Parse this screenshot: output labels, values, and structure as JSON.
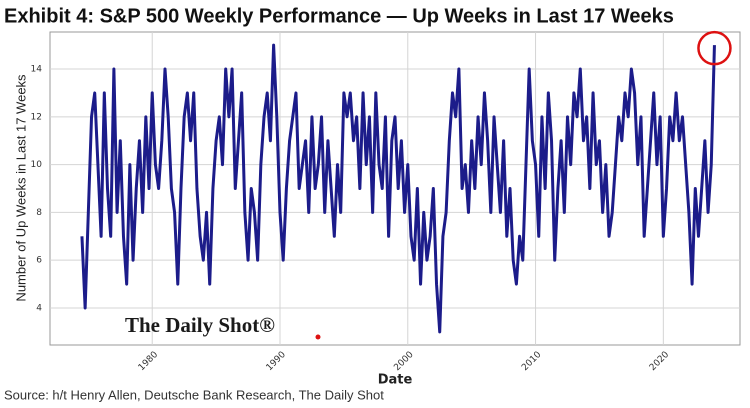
{
  "chart_data": {
    "type": "line",
    "title": "Exhibit 4: S&P 500 Weekly Performance — Up Weeks in Last 17 Weeks",
    "x_label": "Date",
    "y_label": "Number of Up Weeks in Last 17 Weeks",
    "source": "Source: h/t Henry Allen, Deutsche Bank Research, The Daily Shot",
    "watermark": "The Daily Shot®",
    "color": "#1c1c8a",
    "grid": true,
    "xlim": [
      1972,
      2026
    ],
    "xticks": [
      1980,
      1990,
      2000,
      2010,
      2020
    ],
    "ylim": [
      2.45,
      15.55
    ],
    "yticks": [
      4,
      6,
      8,
      10,
      12,
      14
    ],
    "x": [
      1974.5,
      1974.75,
      1975,
      1975.25,
      1975.5,
      1975.75,
      1976,
      1976.25,
      1976.5,
      1976.75,
      1977,
      1977.25,
      1977.5,
      1977.75,
      1978,
      1978.25,
      1978.5,
      1978.75,
      1979,
      1979.25,
      1979.5,
      1979.75,
      1980,
      1980.25,
      1980.5,
      1980.75,
      1981,
      1981.25,
      1981.5,
      1981.75,
      1982,
      1982.25,
      1982.5,
      1982.75,
      1983,
      1983.25,
      1983.5,
      1983.75,
      1984,
      1984.25,
      1984.5,
      1984.75,
      1985,
      1985.25,
      1985.5,
      1985.75,
      1986,
      1986.25,
      1986.5,
      1986.75,
      1987,
      1987.25,
      1987.5,
      1987.75,
      1988,
      1988.25,
      1988.5,
      1988.75,
      1989,
      1989.25,
      1989.5,
      1989.75,
      1990,
      1990.25,
      1990.5,
      1990.75,
      1991,
      1991.25,
      1991.5,
      1991.75,
      1992,
      1992.25,
      1992.5,
      1992.75,
      1993,
      1993.25,
      1993.5,
      1993.75,
      1994,
      1994.25,
      1994.5,
      1994.75,
      1995,
      1995.25,
      1995.5,
      1995.75,
      1996,
      1996.25,
      1996.5,
      1996.75,
      1997,
      1997.25,
      1997.5,
      1997.75,
      1998,
      1998.25,
      1998.5,
      1998.75,
      1999,
      1999.25,
      1999.5,
      1999.75,
      2000,
      2000.25,
      2000.5,
      2000.75,
      2001,
      2001.25,
      2001.5,
      2001.75,
      2002,
      2002.25,
      2002.5,
      2002.75,
      2003,
      2003.25,
      2003.5,
      2003.75,
      2004,
      2004.25,
      2004.5,
      2004.75,
      2005,
      2005.25,
      2005.5,
      2005.75,
      2006,
      2006.25,
      2006.5,
      2006.75,
      2007,
      2007.25,
      2007.5,
      2007.75,
      2008,
      2008.25,
      2008.5,
      2008.75,
      2009,
      2009.25,
      2009.5,
      2009.75,
      2010,
      2010.25,
      2010.5,
      2010.75,
      2011,
      2011.25,
      2011.5,
      2011.75,
      2012,
      2012.25,
      2012.5,
      2012.75,
      2013,
      2013.25,
      2013.5,
      2013.75,
      2014,
      2014.25,
      2014.5,
      2014.75,
      2015,
      2015.25,
      2015.5,
      2015.75,
      2016,
      2016.25,
      2016.5,
      2016.75,
      2017,
      2017.25,
      2017.5,
      2017.75,
      2018,
      2018.25,
      2018.5,
      2018.75,
      2019,
      2019.25,
      2019.5,
      2019.75,
      2020,
      2020.25,
      2020.5,
      2020.75,
      2021,
      2021.25,
      2021.5,
      2021.75,
      2022,
      2022.25,
      2022.5,
      2022.75,
      2023,
      2023.25,
      2023.5,
      2023.75,
      2024
    ],
    "values": [
      7,
      4,
      8,
      12,
      13,
      10,
      7,
      13,
      9,
      7,
      14,
      8,
      11,
      7,
      5,
      10,
      6,
      9,
      11,
      8,
      12,
      9,
      13,
      10,
      9,
      11,
      14,
      12,
      9,
      8,
      5,
      9,
      12,
      13,
      11,
      13,
      9,
      7,
      6,
      8,
      5,
      9,
      11,
      12,
      10,
      14,
      12,
      14,
      9,
      11,
      13,
      8,
      6,
      9,
      8,
      6,
      10,
      12,
      13,
      11,
      15,
      12,
      8,
      6,
      9,
      11,
      12,
      13,
      9,
      10,
      11,
      8,
      12,
      9,
      10,
      12,
      8,
      11,
      9,
      7,
      10,
      8,
      13,
      12,
      13,
      11,
      12,
      9,
      13,
      10,
      12,
      8,
      13,
      10,
      9,
      12,
      7,
      11,
      12,
      9,
      11,
      8,
      10,
      7,
      6,
      9,
      5,
      8,
      6,
      7,
      9,
      5,
      3,
      7,
      8,
      11,
      13,
      12,
      14,
      9,
      10,
      8,
      11,
      9,
      12,
      10,
      13,
      11,
      8,
      12,
      10,
      8,
      11,
      7,
      9,
      6,
      5,
      7,
      6,
      10,
      14,
      11,
      10,
      7,
      12,
      9,
      13,
      11,
      6,
      9,
      11,
      8,
      12,
      10,
      13,
      12,
      14,
      11,
      12,
      9,
      13,
      10,
      11,
      8,
      10,
      7,
      8,
      10,
      12,
      11,
      13,
      12,
      14,
      13,
      10,
      12,
      7,
      9,
      11,
      13,
      10,
      12,
      7,
      9,
      12,
      11,
      13,
      11,
      12,
      10,
      8,
      5,
      9,
      7,
      9,
      11,
      8,
      10,
      15
    ]
  }
}
